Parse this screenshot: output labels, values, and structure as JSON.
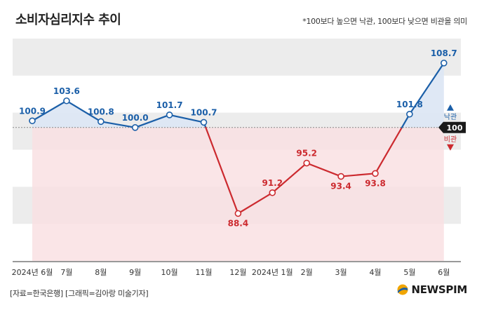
{
  "title": "소비자심리지수 추이",
  "note": "*100보다 높으면 낙관, 100보다 낮으면 비관을 의미",
  "source": "[자료=한국은행] [그래픽=김아랑 미술기자]",
  "logo_text": "NEWSPIM",
  "colors": {
    "optimistic": "#1b5fa8",
    "pessimistic": "#cc2a2f",
    "band": "#ececec",
    "red_fill": "#f9e1e3",
    "blue_fill": "#dde7f4",
    "baseline_badge": "#1a1a1a",
    "logo_mark": "#f0a500"
  },
  "chart_data": {
    "type": "line",
    "categories": [
      "2024년 6월",
      "7월",
      "8월",
      "9월",
      "10월",
      "11월",
      "12월",
      "2024년 1월",
      "2월",
      "3월",
      "4월",
      "5월",
      "6월"
    ],
    "values": [
      100.9,
      103.6,
      100.8,
      100.0,
      101.7,
      100.7,
      88.4,
      91.2,
      95.2,
      93.4,
      93.8,
      101.8,
      108.7
    ],
    "value_labels": [
      "100.9",
      "103.6",
      "100.8",
      "100.0",
      "101.7",
      "100.7",
      "88.4",
      "91.2",
      "95.2",
      "93.4",
      "93.8",
      "101.8",
      "108.7"
    ],
    "baseline": 100,
    "baseline_label": "100",
    "above_label": "낙관",
    "below_label": "비관",
    "ylim": [
      82,
      112
    ],
    "grid": "horizontal bands"
  }
}
